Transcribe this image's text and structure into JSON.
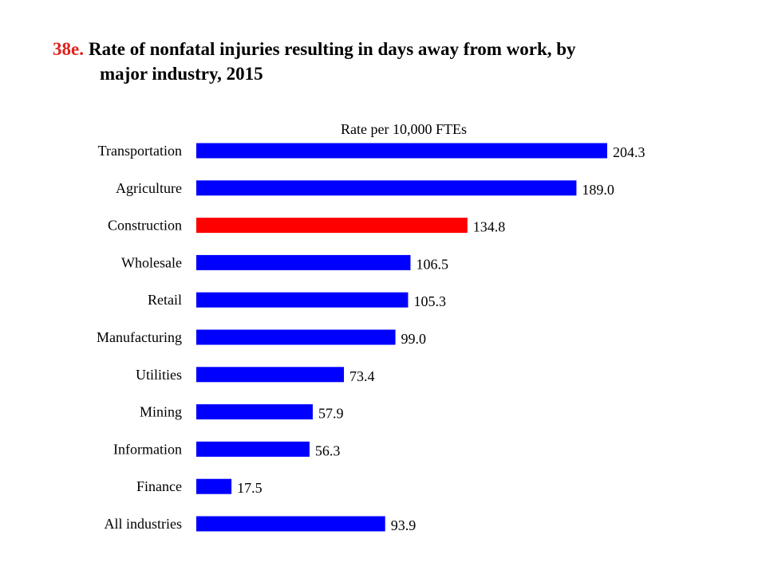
{
  "title": {
    "number": "38e.",
    "line1": "Rate of nonfatal injuries resulting in days away from work, by",
    "line2": "major industry, 2015"
  },
  "chart_data": {
    "type": "bar",
    "orientation": "horizontal",
    "title": "Rate of nonfatal injuries resulting in days away from work, by major industry, 2015",
    "xlabel": "Rate per 10,000 FTEs",
    "ylabel": "",
    "xlim": [
      0,
      210
    ],
    "grid": false,
    "categories": [
      "Transportation",
      "Agriculture",
      "Construction",
      "Wholesale",
      "Retail",
      "Manufacturing",
      "Utilities",
      "Mining",
      "Information",
      "Finance",
      "All industries"
    ],
    "values": [
      204.3,
      189.0,
      134.8,
      106.5,
      105.3,
      99.0,
      73.4,
      57.9,
      56.3,
      17.5,
      93.9
    ],
    "labels": [
      "204.3",
      "189.0",
      "134.8",
      "106.5",
      "105.3",
      "99.0",
      "73.4",
      "57.9",
      "56.3",
      "17.5",
      "93.9"
    ],
    "colors": [
      "#0000ff",
      "#0000ff",
      "#ff0000",
      "#0000ff",
      "#0000ff",
      "#0000ff",
      "#0000ff",
      "#0000ff",
      "#0000ff",
      "#0000ff",
      "#0000ff"
    ]
  }
}
